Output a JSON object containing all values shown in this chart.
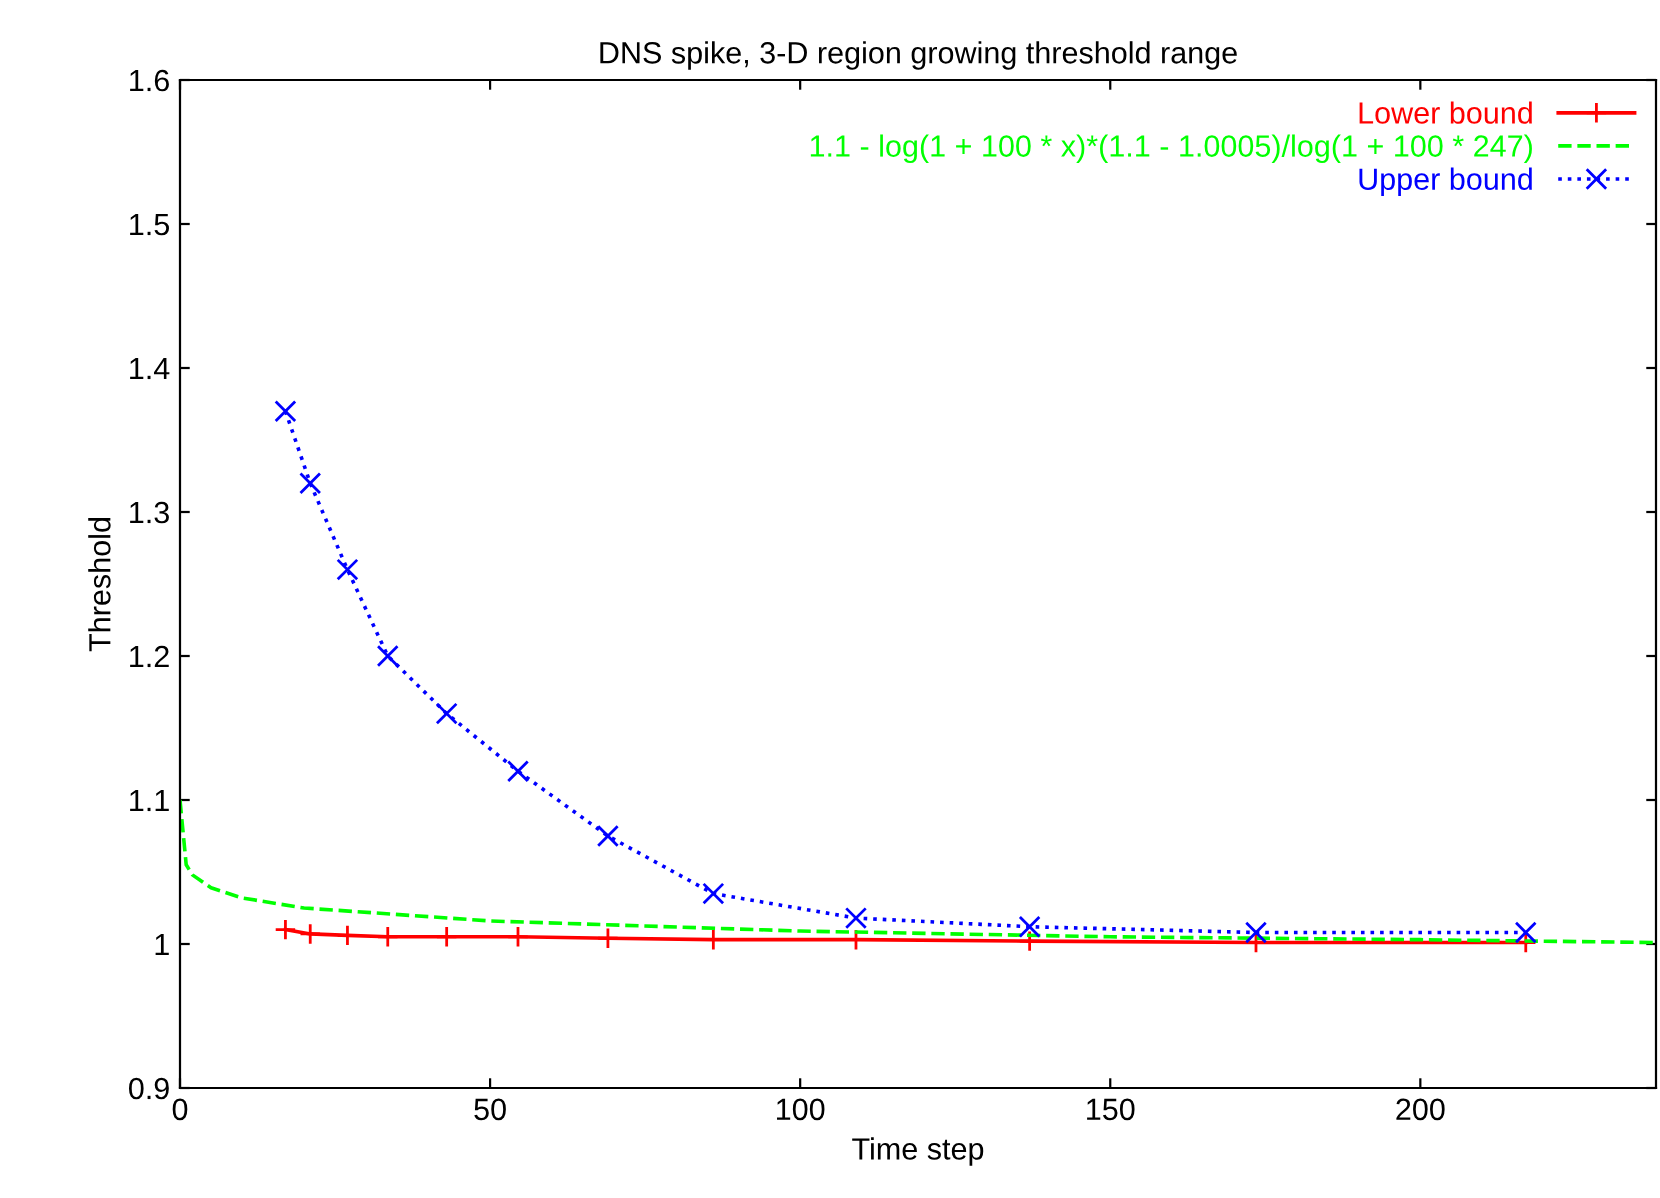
{
  "chart_data": {
    "type": "line",
    "title": "DNS spike, 3-D region growing threshold range",
    "xlabel": "Time step",
    "ylabel": "Threshold",
    "xlim": [
      0,
      238
    ],
    "ylim": [
      0.9,
      1.6
    ],
    "xticks": [
      0,
      50,
      100,
      150,
      200
    ],
    "yticks": [
      0.9,
      1,
      1.1,
      1.2,
      1.3,
      1.4,
      1.5,
      1.6
    ],
    "grid": false,
    "legend": "top right",
    "series": [
      {
        "name": "Lower bound",
        "color": "#ff0000",
        "marker": "cross",
        "line_style": "solid",
        "x": [
          17,
          21,
          27,
          33.5,
          43,
          54.5,
          69,
          86,
          109,
          137,
          173.5,
          217
        ],
        "values": [
          1.01,
          1.007,
          1.006,
          1.005,
          1.005,
          1.005,
          1.004,
          1.003,
          1.003,
          1.002,
          1.001,
          1.001
        ]
      },
      {
        "name": "1.1 - log(1 + 100 * x)*(1.1 - 1.0005)/log(1 + 100 * 247)",
        "color": "#00ff00",
        "marker": "none",
        "line_style": "dashed",
        "x": [
          0,
          1,
          2,
          5,
          10,
          20,
          50,
          100,
          150,
          200,
          238
        ],
        "values": [
          1.1,
          1.055,
          1.048,
          1.039,
          1.032,
          1.025,
          1.016,
          1.009,
          1.005,
          1.003,
          1.001
        ]
      },
      {
        "name": "Upper bound",
        "color": "#0000ff",
        "marker": "x",
        "line_style": "dotted",
        "x": [
          17,
          21,
          27,
          33.5,
          43,
          54.5,
          69,
          86,
          109,
          137,
          173.5,
          217
        ],
        "values": [
          1.37,
          1.32,
          1.26,
          1.2,
          1.16,
          1.12,
          1.075,
          1.035,
          1.018,
          1.012,
          1.008,
          1.008
        ]
      }
    ]
  }
}
